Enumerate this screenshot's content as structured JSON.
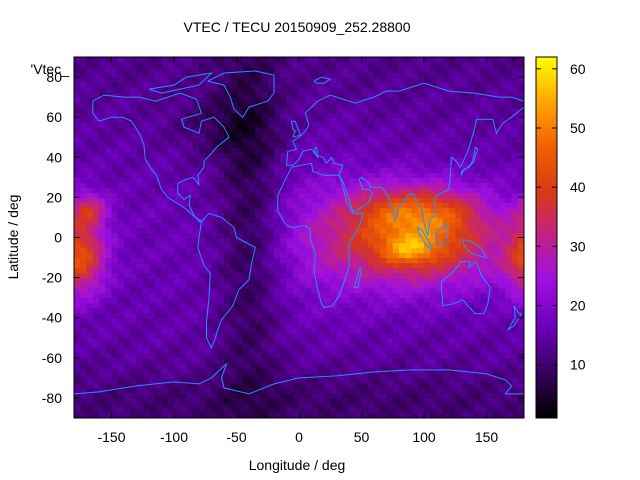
{
  "chart_data": {
    "type": "heatmap",
    "title": "VTEC / TECU 20150909_252.28800",
    "xlabel": "Longitude / deg",
    "ylabel": "Latitude / deg",
    "legend_key": "'Vtec_",
    "xlim": [
      -180,
      180
    ],
    "ylim": [
      -90,
      90
    ],
    "x_ticks": [
      -150,
      -100,
      -50,
      0,
      50,
      100,
      150
    ],
    "y_ticks": [
      -80,
      -60,
      -40,
      -20,
      0,
      20,
      40,
      60,
      80
    ],
    "colorbar": {
      "range": [
        1,
        62
      ],
      "ticks": [
        10,
        20,
        30,
        40,
        50,
        60
      ]
    },
    "overlay": "continent coastlines",
    "grid": false,
    "cells_description": "Gridded VTEC, 5 deg lon x 2.5 deg lat bins",
    "features": [
      {
        "lon": 95,
        "lat": -5,
        "vtec": 52
      },
      {
        "lon": 70,
        "lat": 15,
        "vtec": 45
      },
      {
        "lon": 110,
        "lat": 12,
        "vtec": 44
      },
      {
        "lon": -170,
        "lat": -15,
        "vtec": 45
      },
      {
        "lon": -165,
        "lat": 12,
        "vtec": 38
      },
      {
        "lon": -40,
        "lat": 20,
        "vtec": 5
      },
      {
        "lon": 140,
        "lat": -40,
        "vtec": 18
      }
    ]
  }
}
